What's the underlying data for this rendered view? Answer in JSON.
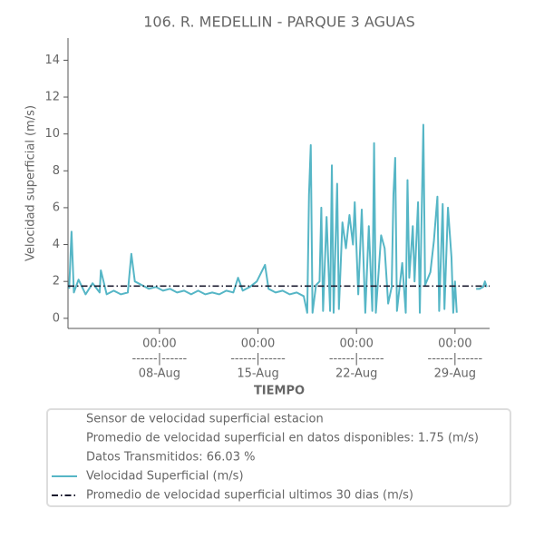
{
  "chart_data": {
    "type": "line",
    "title": "106. R. MEDELLIN - PARQUE 3 AGUAS",
    "ylabel": "Velocidad superficial (m/s)",
    "xlabel": "TIEMPO",
    "ylim": [
      -0.55,
      15.2
    ],
    "yticks": [
      0,
      2,
      4,
      6,
      8,
      10,
      12,
      14
    ],
    "xlim": [
      "01-Aug 12:00",
      "31-Aug 11:00"
    ],
    "xticks": [
      {
        "value": "08-Aug 00:00",
        "label": [
          "00:00",
          "------|------",
          "08-Aug"
        ]
      },
      {
        "value": "15-Aug 00:00",
        "label": [
          "00:00",
          "------|------",
          "15-Aug"
        ]
      },
      {
        "value": "22-Aug 00:00",
        "label": [
          "00:00",
          "------|------",
          "22-Aug"
        ]
      },
      {
        "value": "29-Aug 00:00",
        "label": [
          "00:00",
          "------|------",
          "29-Aug"
        ]
      }
    ],
    "legend_notes": [
      "Sensor de velocidad superficial estacion",
      "Promedio de velocidad superficial en datos disponibles: 1.75 (m/s)",
      "Datos Transmitidos: 66.03 %"
    ],
    "series": [
      {
        "name": "Velocidad Superficial (m/s)",
        "color": "#56b6c6",
        "style": "solid",
        "x": [
          "01-Aug 14:00",
          "01-Aug 18:00",
          "01-Aug 22:00",
          "02-Aug 06:00",
          "02-Aug 18:00",
          "03-Aug 06:00",
          "03-Aug 18:00",
          "03-Aug 20:00",
          "04-Aug 06:00",
          "04-Aug 18:00",
          "05-Aug 06:00",
          "05-Aug 18:00",
          "06-Aug 00:00",
          "06-Aug 06:00",
          "06-Aug 18:00",
          "07-Aug 06:00",
          "07-Aug 18:00",
          "08-Aug 06:00",
          "08-Aug 18:00",
          "09-Aug 06:00",
          "09-Aug 18:00",
          "10-Aug 06:00",
          "10-Aug 18:00",
          "11-Aug 06:00",
          "11-Aug 18:00",
          "12-Aug 06:00",
          "12-Aug 18:00",
          "13-Aug 06:00",
          "13-Aug 14:00",
          "13-Aug 22:00",
          "14-Aug 10:00",
          "14-Aug 22:00",
          "15-Aug 12:00",
          "15-Aug 18:00",
          "16-Aug 06:00",
          "16-Aug 18:00",
          "17-Aug 06:00",
          "17-Aug 18:00",
          "18-Aug 06:00",
          "18-Aug 12:00",
          "18-Aug 15:00",
          "18-Aug 18:00",
          "18-Aug 21:00",
          "19-Aug 03:00",
          "19-Aug 09:00",
          "19-Aug 12:00",
          "19-Aug 15:00",
          "19-Aug 21:00",
          "20-Aug 03:00",
          "20-Aug 06:00",
          "20-Aug 09:00",
          "20-Aug 15:00",
          "20-Aug 18:00",
          "21-Aug 00:00",
          "21-Aug 06:00",
          "21-Aug 12:00",
          "21-Aug 18:00",
          "21-Aug 21:00",
          "22-Aug 03:00",
          "22-Aug 09:00",
          "22-Aug 15:00",
          "22-Aug 21:00",
          "23-Aug 03:00",
          "23-Aug 06:00",
          "23-Aug 09:00",
          "23-Aug 18:00",
          "24-Aug 00:00",
          "24-Aug 06:00",
          "24-Aug 12:00",
          "24-Aug 15:00",
          "24-Aug 18:00",
          "24-Aug 21:00",
          "25-Aug 06:00",
          "25-Aug 12:00",
          "25-Aug 15:00",
          "25-Aug 18:00",
          "26-Aug 00:00",
          "26-Aug 03:00",
          "26-Aug 09:00",
          "26-Aug 12:00",
          "26-Aug 18:00",
          "26-Aug 21:00",
          "27-Aug 06:00",
          "27-Aug 12:00",
          "27-Aug 18:00",
          "27-Aug 21:00",
          "28-Aug 03:00",
          "28-Aug 06:00",
          "28-Aug 12:00",
          "28-Aug 18:00",
          "28-Aug 21:00",
          "29-Aug 00:00",
          "29-Aug 03:00",
          "29-Aug 12:00",
          "30-Aug 12:00",
          "30-Aug 18:00",
          "31-Aug 00:00",
          "31-Aug 03:00",
          "31-Aug 06:00"
        ],
        "values": [
          1.6,
          4.7,
          1.4,
          2.1,
          1.3,
          1.9,
          1.4,
          2.6,
          1.3,
          1.5,
          1.3,
          1.4,
          3.5,
          2.0,
          1.8,
          1.6,
          1.7,
          1.5,
          1.6,
          1.4,
          1.5,
          1.3,
          1.5,
          1.3,
          1.4,
          1.3,
          1.5,
          1.4,
          2.2,
          1.5,
          1.7,
          2.0,
          2.9,
          1.6,
          1.4,
          1.5,
          1.3,
          1.4,
          1.2,
          0.3,
          6.7,
          9.4,
          0.3,
          1.8,
          2.0,
          6.0,
          0.4,
          5.5,
          0.4,
          8.3,
          0.3,
          7.3,
          0.5,
          5.2,
          3.8,
          5.6,
          4.0,
          6.3,
          1.3,
          5.9,
          0.3,
          5.0,
          0.4,
          9.5,
          0.3,
          4.5,
          3.8,
          0.8,
          1.7,
          6.7,
          8.7,
          0.4,
          3.0,
          0.3,
          7.5,
          2.2,
          5.0,
          2.0,
          6.3,
          0.3,
          10.5,
          1.8,
          2.5,
          4.2,
          6.6,
          0.4,
          6.2,
          0.5,
          6.0,
          3.3,
          0.3,
          2.0,
          0.3,
          null,
          1.6,
          1.6,
          1.7,
          2.0,
          1.7
        ]
      },
      {
        "name": "Promedio de velocidad superficial ultimos 30 dias (m/s)",
        "color": "#1b1b2f",
        "style": "dashdot",
        "x": [
          "01-Aug 12:00",
          "31-Aug 11:00"
        ],
        "values": [
          1.75,
          1.75
        ]
      }
    ]
  }
}
